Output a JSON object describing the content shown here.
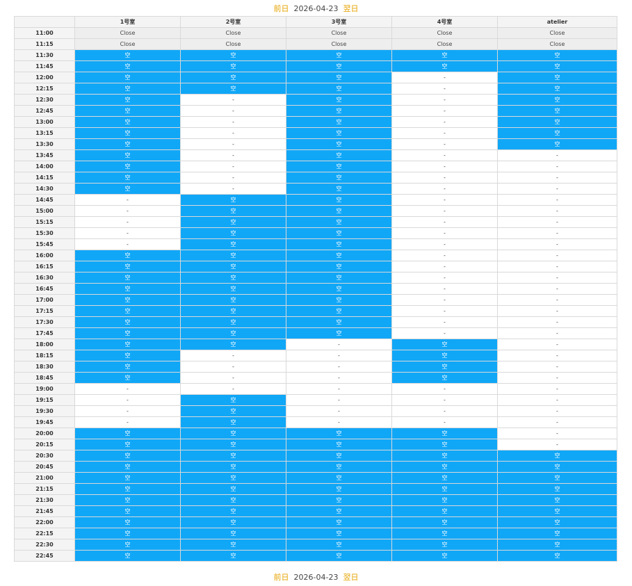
{
  "nav": {
    "prev_label": "前日",
    "date": "2026-04-23",
    "next_label": "翌日"
  },
  "schedule": {
    "columns": [
      "",
      "1号室",
      "2号室",
      "3号室",
      "4号室",
      "atelier"
    ],
    "labels": {
      "open": "空",
      "closed": "Close",
      "unavailable": "-"
    },
    "rows": [
      {
        "time": "11:00",
        "slots": [
          "Close",
          "Close",
          "Close",
          "Close",
          "Close"
        ]
      },
      {
        "time": "11:15",
        "slots": [
          "Close",
          "Close",
          "Close",
          "Close",
          "Close"
        ]
      },
      {
        "time": "11:30",
        "slots": [
          "空",
          "空",
          "空",
          "空",
          "空"
        ]
      },
      {
        "time": "11:45",
        "slots": [
          "空",
          "空",
          "空",
          "空",
          "空"
        ]
      },
      {
        "time": "12:00",
        "slots": [
          "空",
          "空",
          "空",
          "-",
          "空"
        ]
      },
      {
        "time": "12:15",
        "slots": [
          "空",
          "空",
          "空",
          "-",
          "空"
        ]
      },
      {
        "time": "12:30",
        "slots": [
          "空",
          "-",
          "空",
          "-",
          "空"
        ]
      },
      {
        "time": "12:45",
        "slots": [
          "空",
          "-",
          "空",
          "-",
          "空"
        ]
      },
      {
        "time": "13:00",
        "slots": [
          "空",
          "-",
          "空",
          "-",
          "空"
        ]
      },
      {
        "time": "13:15",
        "slots": [
          "空",
          "-",
          "空",
          "-",
          "空"
        ]
      },
      {
        "time": "13:30",
        "slots": [
          "空",
          "-",
          "空",
          "-",
          "空"
        ]
      },
      {
        "time": "13:45",
        "slots": [
          "空",
          "-",
          "空",
          "-",
          "-"
        ]
      },
      {
        "time": "14:00",
        "slots": [
          "空",
          "-",
          "空",
          "-",
          "-"
        ]
      },
      {
        "time": "14:15",
        "slots": [
          "空",
          "-",
          "空",
          "-",
          "-"
        ]
      },
      {
        "time": "14:30",
        "slots": [
          "空",
          "-",
          "空",
          "-",
          "-"
        ]
      },
      {
        "time": "14:45",
        "slots": [
          "-",
          "空",
          "空",
          "-",
          "-"
        ]
      },
      {
        "time": "15:00",
        "slots": [
          "-",
          "空",
          "空",
          "-",
          "-"
        ]
      },
      {
        "time": "15:15",
        "slots": [
          "-",
          "空",
          "空",
          "-",
          "-"
        ]
      },
      {
        "time": "15:30",
        "slots": [
          "-",
          "空",
          "空",
          "-",
          "-"
        ]
      },
      {
        "time": "15:45",
        "slots": [
          "-",
          "空",
          "空",
          "-",
          "-"
        ]
      },
      {
        "time": "16:00",
        "slots": [
          "空",
          "空",
          "空",
          "-",
          "-"
        ]
      },
      {
        "time": "16:15",
        "slots": [
          "空",
          "空",
          "空",
          "-",
          "-"
        ]
      },
      {
        "time": "16:30",
        "slots": [
          "空",
          "空",
          "空",
          "-",
          "-"
        ]
      },
      {
        "time": "16:45",
        "slots": [
          "空",
          "空",
          "空",
          "-",
          "-"
        ]
      },
      {
        "time": "17:00",
        "slots": [
          "空",
          "空",
          "空",
          "-",
          "-"
        ]
      },
      {
        "time": "17:15",
        "slots": [
          "空",
          "空",
          "空",
          "-",
          "-"
        ]
      },
      {
        "time": "17:30",
        "slots": [
          "空",
          "空",
          "空",
          "-",
          "-"
        ]
      },
      {
        "time": "17:45",
        "slots": [
          "空",
          "空",
          "空",
          "-",
          "-"
        ]
      },
      {
        "time": "18:00",
        "slots": [
          "空",
          "空",
          "-",
          "空",
          "-"
        ]
      },
      {
        "time": "18:15",
        "slots": [
          "空",
          "-",
          "-",
          "空",
          "-"
        ]
      },
      {
        "time": "18:30",
        "slots": [
          "空",
          "-",
          "-",
          "空",
          "-"
        ]
      },
      {
        "time": "18:45",
        "slots": [
          "空",
          "-",
          "-",
          "空",
          "-"
        ]
      },
      {
        "time": "19:00",
        "slots": [
          "-",
          "-",
          "-",
          "-",
          "-"
        ]
      },
      {
        "time": "19:15",
        "slots": [
          "-",
          "空",
          "-",
          "-",
          "-"
        ]
      },
      {
        "time": "19:30",
        "slots": [
          "-",
          "空",
          "-",
          "-",
          "-"
        ]
      },
      {
        "time": "19:45",
        "slots": [
          "-",
          "空",
          "-",
          "-",
          "-"
        ]
      },
      {
        "time": "20:00",
        "slots": [
          "空",
          "空",
          "空",
          "空",
          "-"
        ]
      },
      {
        "time": "20:15",
        "slots": [
          "空",
          "空",
          "空",
          "空",
          "-"
        ]
      },
      {
        "time": "20:30",
        "slots": [
          "空",
          "空",
          "空",
          "空",
          "空"
        ]
      },
      {
        "time": "20:45",
        "slots": [
          "空",
          "空",
          "空",
          "空",
          "空"
        ]
      },
      {
        "time": "21:00",
        "slots": [
          "空",
          "空",
          "空",
          "空",
          "空"
        ]
      },
      {
        "time": "21:15",
        "slots": [
          "空",
          "空",
          "空",
          "空",
          "空"
        ]
      },
      {
        "time": "21:30",
        "slots": [
          "空",
          "空",
          "空",
          "空",
          "空"
        ]
      },
      {
        "time": "21:45",
        "slots": [
          "空",
          "空",
          "空",
          "空",
          "空"
        ]
      },
      {
        "time": "22:00",
        "slots": [
          "空",
          "空",
          "空",
          "空",
          "空"
        ]
      },
      {
        "time": "22:15",
        "slots": [
          "空",
          "空",
          "空",
          "空",
          "空"
        ]
      },
      {
        "time": "22:30",
        "slots": [
          "空",
          "空",
          "空",
          "空",
          "空"
        ]
      },
      {
        "time": "22:45",
        "slots": [
          "空",
          "空",
          "空",
          "空",
          "空"
        ]
      }
    ]
  },
  "colors": {
    "open": "#11a7f7",
    "closed": "#eeeeee",
    "nav_link": "#e6a300",
    "header": "#f4f4f4"
  }
}
